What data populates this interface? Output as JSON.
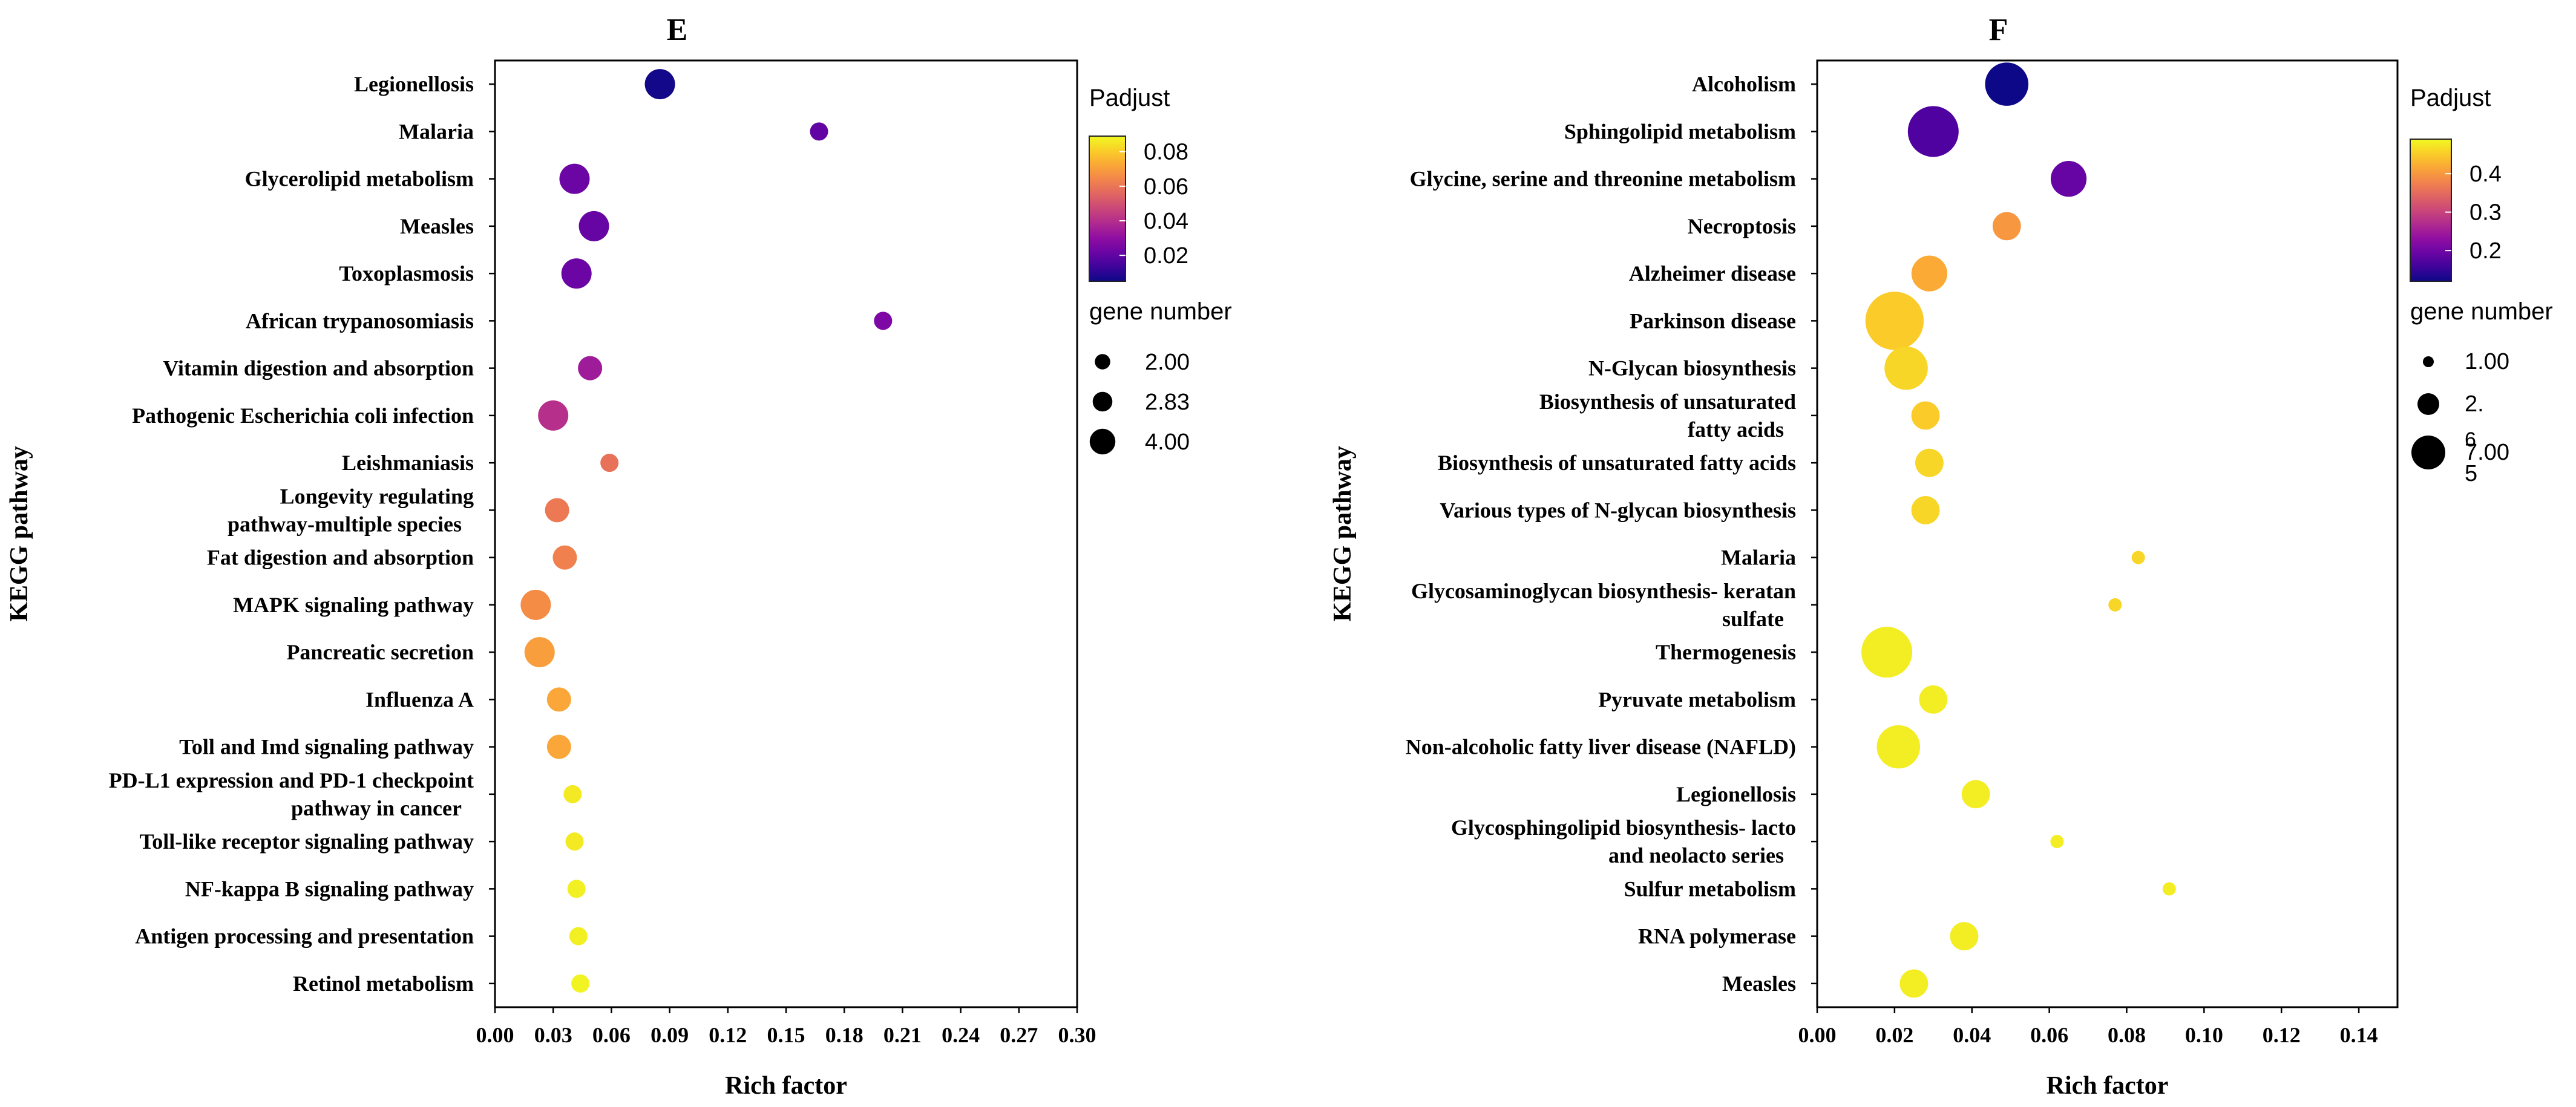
{
  "chart_data": [
    {
      "panel_label": "E",
      "type": "scatter",
      "xlabel": "Rich factor",
      "ylabel": "KEGG pathway",
      "xlim": [
        0,
        0.3
      ],
      "xticks": [
        "0.00",
        "0.03",
        "0.06",
        "0.09",
        "0.12",
        "0.15",
        "0.18",
        "0.21",
        "0.24",
        "0.27",
        "0.30"
      ],
      "legend": {
        "color_title": "Padjust",
        "color_range": [
          0.005,
          0.089
        ],
        "color_ticks": [
          "0.08",
          "0.06",
          "0.04",
          "0.02"
        ],
        "size_title": "gene number",
        "size_entries": [
          "2.00",
          "2.83",
          "4.00"
        ]
      },
      "categories": [
        "Legionellosis",
        "Malaria",
        "Glycerolipid metabolism",
        "Measles",
        "Toxoplasmosis",
        "African trypanosomiasis",
        "Vitamin digestion and absorption",
        "Pathogenic Escherichia coli infection",
        "Leishmaniasis",
        "Longevity regulating pathway-multiple species",
        "Fat digestion and absorption",
        "MAPK signaling pathway",
        "Pancreatic secretion",
        "Influenza A",
        "Toll and Imd signaling pathway",
        "PD-L1 expression and PD-1 checkpoint pathway in cancer",
        "Toll-like receptor signaling pathway",
        "NF-kappa B signaling pathway",
        "Antigen processing and presentation",
        "Retinol metabolism"
      ],
      "category_lines": [
        [
          "Legionellosis"
        ],
        [
          "Malaria"
        ],
        [
          "Glycerolipid metabolism"
        ],
        [
          "Measles"
        ],
        [
          "Toxoplasmosis"
        ],
        [
          "African trypanosomiasis"
        ],
        [
          "Vitamin digestion and absorption"
        ],
        [
          "Pathogenic Escherichia coli infection"
        ],
        [
          "Leishmaniasis"
        ],
        [
          "Longevity regulating",
          "pathway-multiple species"
        ],
        [
          "Fat digestion and absorption"
        ],
        [
          "MAPK signaling pathway"
        ],
        [
          "Pancreatic secretion"
        ],
        [
          "Influenza A"
        ],
        [
          "Toll and Imd signaling pathway"
        ],
        [
          "PD-L1 expression and PD-1 checkpoint",
          "pathway in cancer"
        ],
        [
          "Toll-like receptor signaling pathway"
        ],
        [
          "NF-kappa B signaling pathway"
        ],
        [
          "Antigen processing and presentation"
        ],
        [
          "Retinol metabolism"
        ]
      ],
      "x": [
        0.085,
        0.167,
        0.041,
        0.051,
        0.042,
        0.2,
        0.049,
        0.03,
        0.059,
        0.032,
        0.036,
        0.021,
        0.023,
        0.033,
        0.033,
        0.04,
        0.041,
        0.042,
        0.043,
        0.044
      ],
      "padj": [
        0.006,
        0.02,
        0.022,
        0.021,
        0.022,
        0.026,
        0.034,
        0.04,
        0.059,
        0.061,
        0.063,
        0.066,
        0.07,
        0.072,
        0.072,
        0.086,
        0.086,
        0.087,
        0.087,
        0.088
      ],
      "gene_number": [
        4,
        2,
        4,
        4,
        4,
        2,
        3,
        4,
        2,
        3,
        3,
        4,
        4,
        3,
        3,
        2,
        2,
        2,
        2,
        2
      ]
    },
    {
      "panel_label": "F",
      "type": "scatter",
      "xlabel": "Rich factor",
      "ylabel": "KEGG pathway",
      "xlim": [
        0,
        0.15
      ],
      "xticks": [
        "0.00",
        "0.02",
        "0.04",
        "0.06",
        "0.08",
        "0.10",
        "0.12",
        "0.14"
      ],
      "legend": {
        "color_title": "Padjust",
        "color_range": [
          0.12,
          0.49
        ],
        "color_ticks": [
          "0.4",
          "0.3",
          "0.2"
        ],
        "size_title": "gene number",
        "size_entries": [
          "1.00",
          "2.",
          "6",
          "7.00",
          "5"
        ]
      },
      "categories": [
        "Alcoholism",
        "Sphingolipid metabolism",
        "Glycine, serine and threonine metabolism",
        "Necroptosis",
        "Alzheimer disease",
        "Parkinson disease",
        "N-Glycan biosynthesis",
        "Biosynthesis of unsaturated fatty acids",
        "Biosynthesis of unsaturated fatty acids",
        "Various types of N-glycan biosynthesis",
        "Malaria",
        "Glycosaminoglycan biosynthesis- keratan sulfate",
        "Thermogenesis",
        "Pyruvate metabolism",
        "Non-alcoholic fatty liver disease (NAFLD)",
        "Legionellosis",
        "Glycosphingolipid biosynthesis- lacto and neolacto series",
        "Sulfur metabolism",
        "RNA polymerase",
        "Measles"
      ],
      "category_lines": [
        [
          "Alcoholism"
        ],
        [
          "Sphingolipid metabolism"
        ],
        [
          "Glycine, serine and threonine metabolism"
        ],
        [
          "Necroptosis"
        ],
        [
          "Alzheimer disease"
        ],
        [
          "Parkinson disease"
        ],
        [
          "N-Glycan biosynthesis"
        ],
        [
          "Biosynthesis of unsaturated",
          "fatty acids"
        ],
        [
          "Biosynthesis of unsaturated fatty acids"
        ],
        [
          "Various types of N-glycan biosynthesis"
        ],
        [
          "Malaria"
        ],
        [
          "Glycosaminoglycan biosynthesis- keratan",
          "sulfate"
        ],
        [
          "Thermogenesis"
        ],
        [
          "Pyruvate metabolism"
        ],
        [
          "Non-alcoholic fatty liver disease (NAFLD)"
        ],
        [
          "Legionellosis"
        ],
        [
          "Glycosphingolipid biosynthesis- lacto",
          "and neolacto series"
        ],
        [
          "Sulfur metabolism"
        ],
        [
          "RNA polymerase"
        ],
        [
          "Measles"
        ]
      ],
      "x": [
        0.049,
        0.03,
        0.065,
        0.049,
        0.029,
        0.02,
        0.023,
        0.028,
        0.029,
        0.028,
        0.083,
        0.077,
        0.018,
        0.03,
        0.021,
        0.041,
        0.062,
        0.091,
        0.038,
        0.025
      ],
      "padj": [
        0.12,
        0.17,
        0.19,
        0.4,
        0.42,
        0.45,
        0.46,
        0.45,
        0.46,
        0.46,
        0.46,
        0.46,
        0.48,
        0.48,
        0.48,
        0.48,
        0.48,
        0.48,
        0.48,
        0.48
      ],
      "gene_number": [
        5,
        6,
        4,
        3,
        4,
        7,
        5,
        3,
        3,
        3,
        1,
        1,
        6,
        3,
        5,
        3,
        1,
        1,
        3,
        3
      ]
    }
  ]
}
